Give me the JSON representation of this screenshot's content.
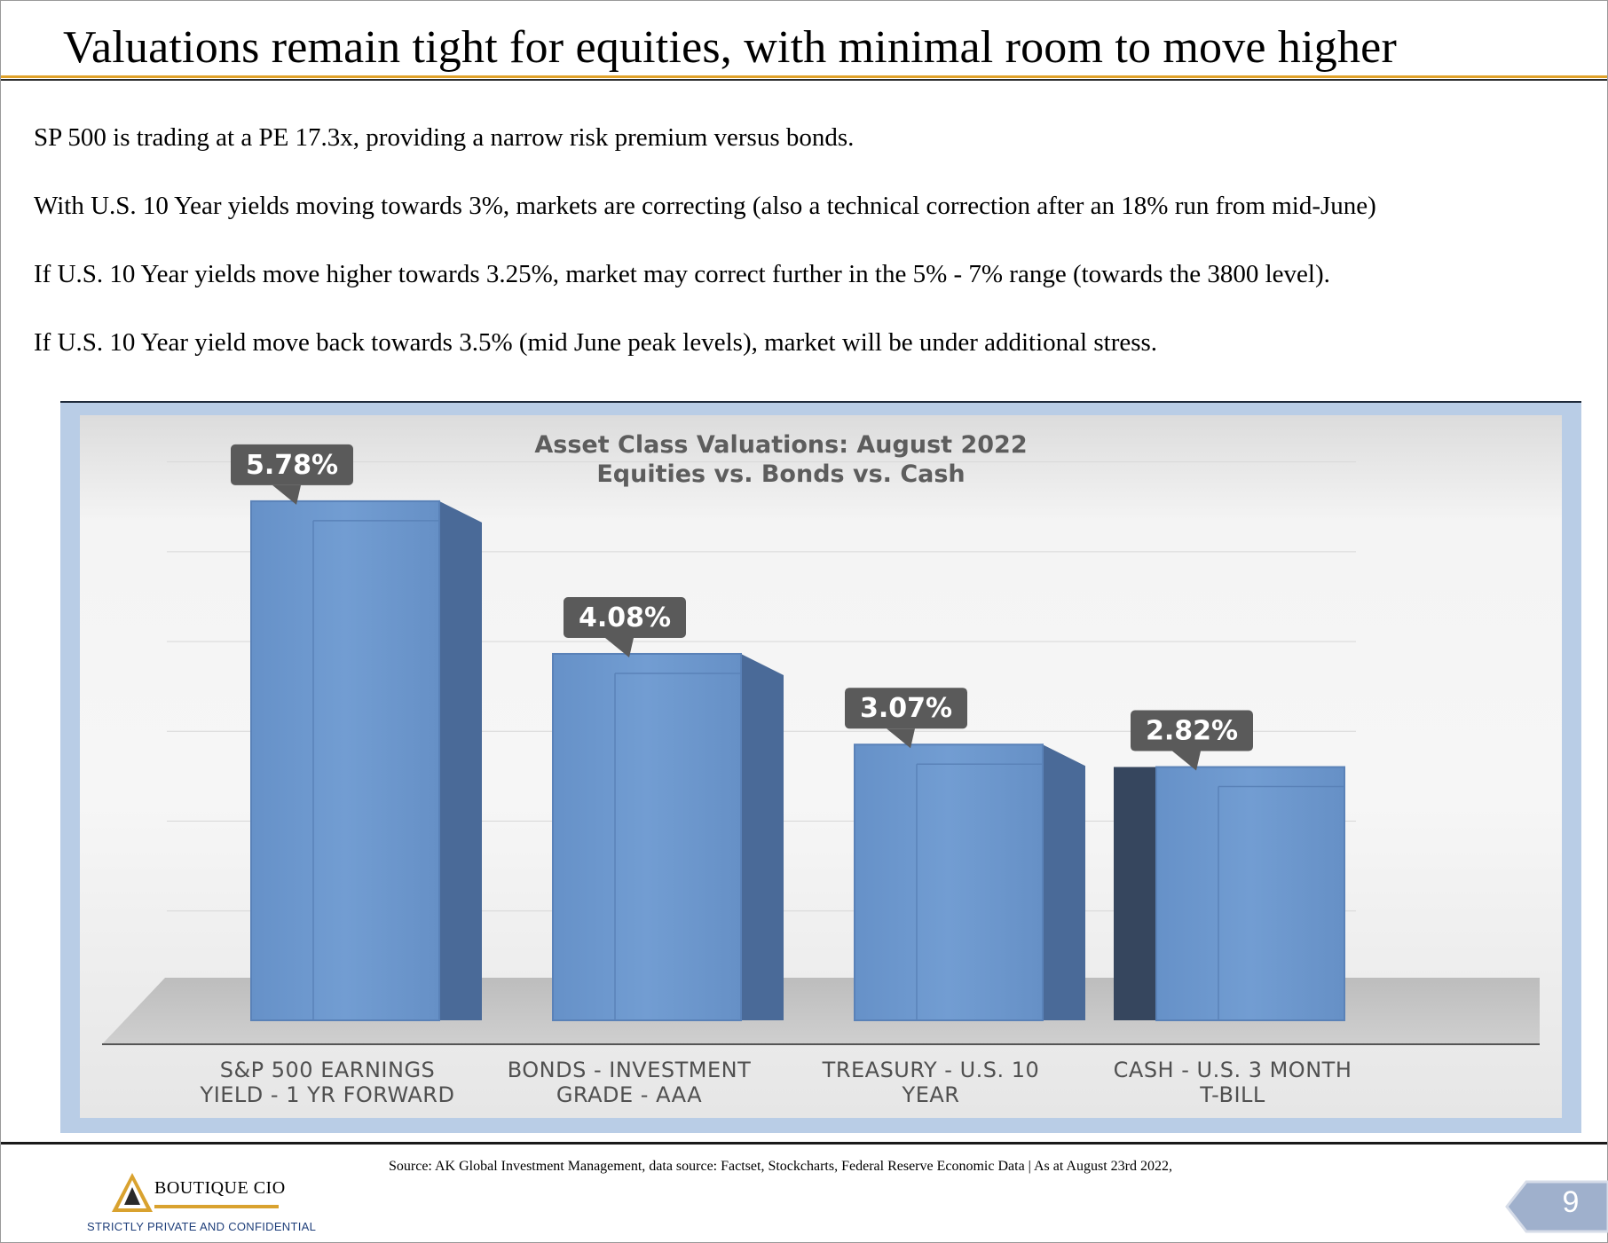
{
  "slide": {
    "title": "Valuations remain tight for equities, with minimal room to move higher",
    "bullets": [
      "SP 500 is trading at a PE 17.3x, providing a narrow risk premium versus bonds.",
      "With U.S. 10 Year yields moving towards 3%, markets are correcting (also a technical correction after an 18% run from mid-June)",
      "If U.S. 10 Year yields move higher towards 3.25%, market may correct further in the 5% - 7% range (towards the 3800 level).",
      "If U.S. 10 Year yield move back towards 3.5% (mid June peak levels), market will be under additional stress."
    ]
  },
  "chart_data": {
    "type": "bar",
    "title": "Asset Class Valuations: August 2022",
    "subtitle": "Equities vs. Bonds vs. Cash",
    "categories": [
      [
        "S&P 500 EARNINGS",
        "YIELD - 1 YR FORWARD"
      ],
      [
        "BONDS - INVESTMENT",
        "GRADE - AAA"
      ],
      [
        "TREASURY - U.S. 10",
        "YEAR"
      ],
      [
        "CASH -  U.S. 3 MONTH",
        "T-BILL"
      ]
    ],
    "values": [
      5.78,
      4.08,
      3.07,
      2.82
    ],
    "data_labels": [
      "5.78%",
      "4.08%",
      "3.07%",
      "2.82%"
    ],
    "unit": "%",
    "ylim": [
      0,
      6.5
    ],
    "grid": true,
    "legend": "none",
    "colors": {
      "bar_front": "#6b96cb",
      "bar_side": "#4a6a98",
      "callout": "#5a5a5a",
      "panel": "#b9cde6"
    }
  },
  "footer": {
    "source": "Source: AK Global Investment Management, data source: Factset, Stockcharts, Federal Reserve Economic Data | As at August 23rd 2022,",
    "logo_name": "BOUTIQUE CIO",
    "confidential": "STRICTLY PRIVATE AND CONFIDENTIAL",
    "page_number": "9"
  }
}
